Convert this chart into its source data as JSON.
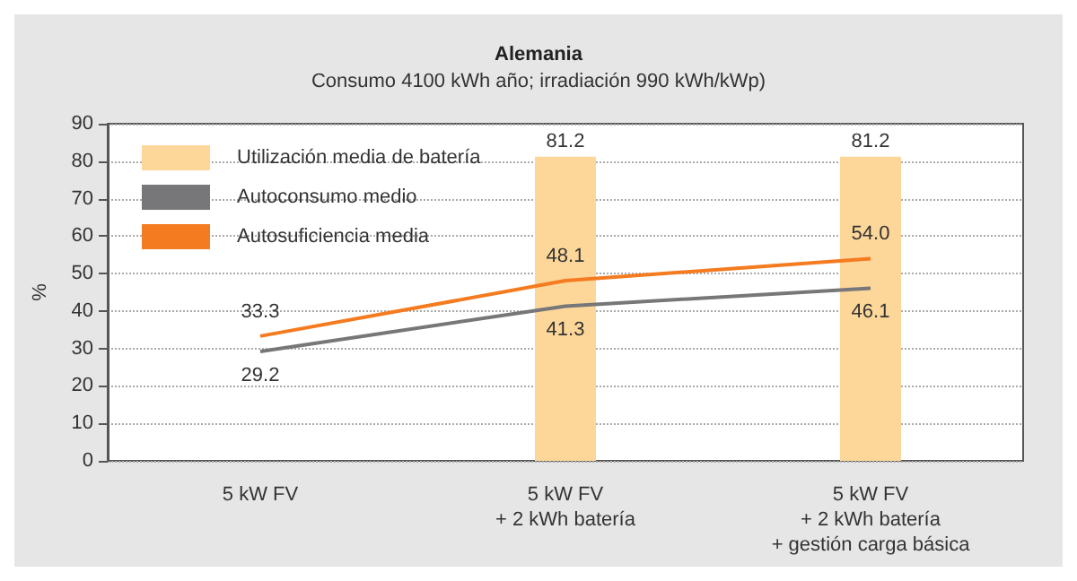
{
  "chart_data": {
    "type": "bar",
    "title": "Alemania",
    "subtitle": "Consumo 4100 kWh año; irradiación 990 kWh/kWp)",
    "ylabel": "%",
    "categories": [
      "5 kW FV",
      "5 kW FV\n+ 2 kWh batería",
      "5 kW FV\n+ 2 kWh batería\n+ gestión carga básica"
    ],
    "series": [
      {
        "name": "Utilización media de batería",
        "color": "#fdd699",
        "values": [
          null,
          81.2,
          81.2
        ],
        "value_labels": [
          null,
          "81.2",
          "81.2"
        ]
      },
      {
        "name": "Autoconsumo medio",
        "type": "line",
        "color": "#77777a",
        "values": [
          29.2,
          41.3,
          46.1
        ],
        "value_labels": [
          "29.2",
          "41.3",
          "46.1"
        ]
      },
      {
        "name": "Autosuficiencia media",
        "type": "line",
        "color": "#f47b20",
        "values": [
          33.3,
          48.1,
          54.0
        ],
        "value_labels": [
          "33.3",
          "48.1",
          "54.0"
        ]
      }
    ],
    "ylim": [
      0,
      90
    ],
    "yticks": [
      0,
      10,
      20,
      30,
      40,
      50,
      60,
      70,
      80,
      90
    ],
    "grid": "y",
    "legend": "top left",
    "marker": "none"
  }
}
